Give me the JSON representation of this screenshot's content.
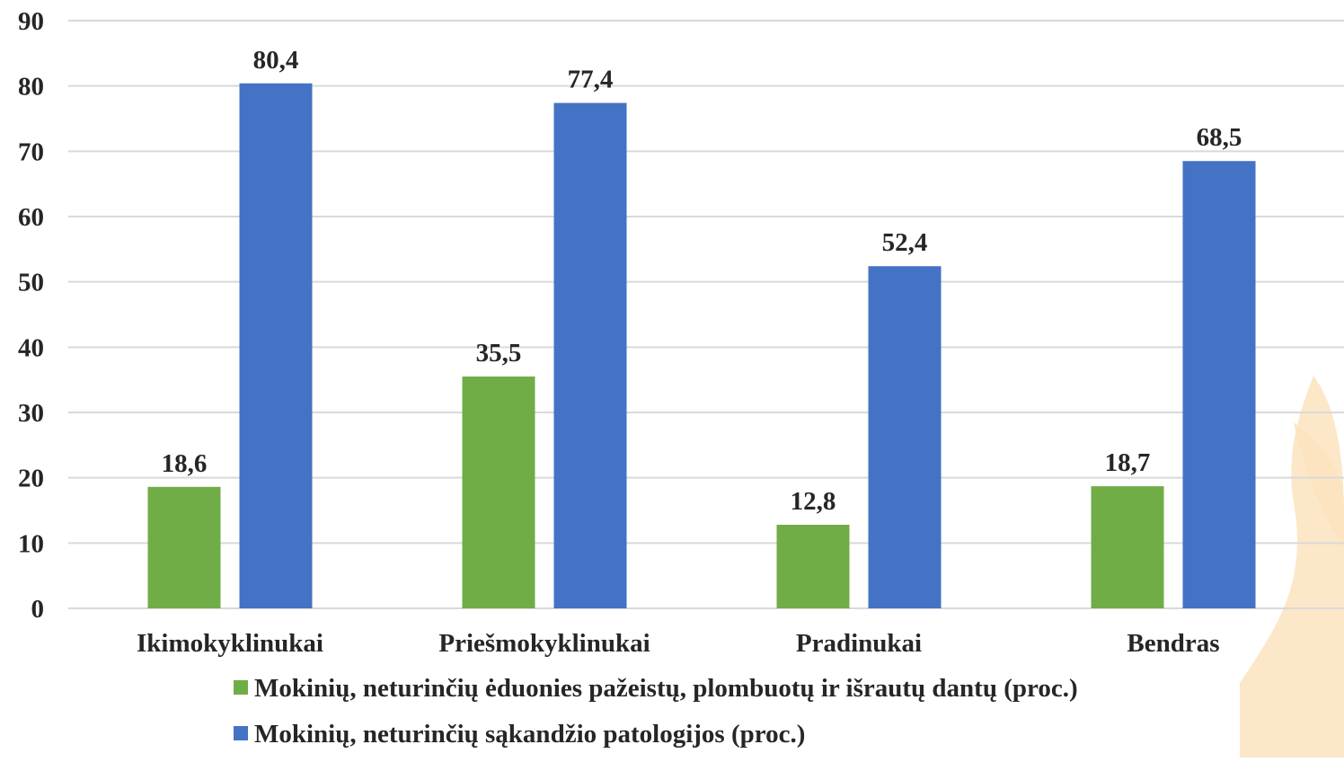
{
  "chart_data": {
    "type": "bar",
    "categories": [
      "Ikimokyklinukai",
      "Priešmokyklinukai",
      "Pradinukai",
      "Bendras"
    ],
    "series": [
      {
        "name": "Mokinių, neturinčių ėduonies pažeistų, plombuotų ir išrautų dantų (proc.)",
        "values": [
          18.6,
          35.5,
          12.8,
          18.7
        ],
        "labels": [
          "18,6",
          "35,5",
          "12,8",
          "18,7"
        ],
        "color": "#70AD47"
      },
      {
        "name": "Mokinių, neturinčių sąkandžio patologijos (proc.)",
        "values": [
          80.4,
          77.4,
          52.4,
          68.5
        ],
        "labels": [
          "80,4",
          "77,4",
          "52,4",
          "68,5"
        ],
        "color": "#4472C4"
      }
    ],
    "ylim": [
      0,
      90
    ],
    "yticks": [
      0,
      10,
      20,
      30,
      40,
      50,
      60,
      70,
      80,
      90
    ],
    "title": "",
    "xlabel": "",
    "ylabel": "",
    "grid": true,
    "legend_position": "bottom"
  },
  "colors": {
    "gridline": "#d9d9d9",
    "text": "#262626",
    "watermark": "#FBE3C0"
  }
}
